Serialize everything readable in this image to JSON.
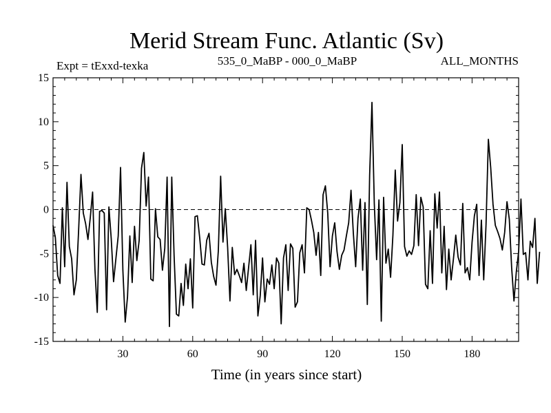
{
  "chart_data": {
    "type": "line",
    "title": "Merid Stream Func. Atlantic (Sv)",
    "subtitle_left": "Expt = tExxd-texka",
    "subtitle_center": "535_0_MaBP - 000_0_MaBP",
    "subtitle_right": "ALL_MONTHS",
    "xlabel": "Time (in years since start)",
    "ylabel": "",
    "xlim": [
      0,
      200
    ],
    "ylim": [
      -15,
      15
    ],
    "x_ticks": [
      30,
      60,
      90,
      120,
      150,
      180
    ],
    "y_ticks": [
      15,
      10,
      5,
      0,
      -5,
      -10,
      -15
    ],
    "reference_line": 0,
    "series": [
      {
        "name": "Merid Stream Func. Atlantic",
        "x_start": 0,
        "x_step": 1,
        "values": [
          -1.8,
          -3.2,
          -7.5,
          -8.4,
          0.2,
          -6.5,
          3.1,
          -4.2,
          -5.6,
          -9.7,
          -8.0,
          -2.3,
          4.0,
          -0.4,
          -1.6,
          -3.4,
          -0.9,
          2.0,
          -6.8,
          -11.7,
          -0.2,
          -0.1,
          -0.4,
          -11.4,
          0.3,
          -3.3,
          -8.2,
          -5.6,
          -3.0,
          4.8,
          -6.9,
          -12.8,
          -9.9,
          -3.0,
          -8.3,
          -1.9,
          -5.8,
          -3.5,
          4.7,
          6.5,
          0.4,
          3.7,
          -7.9,
          -8.1,
          0.1,
          -3.1,
          -3.4,
          -6.9,
          -4.4,
          3.7,
          -13.3,
          3.7,
          -5.2,
          -11.9,
          -12.1,
          -8.4,
          -10.9,
          -6.2,
          -9.0,
          -5.6,
          -11.2,
          -0.8,
          -0.7,
          -3.2,
          -6.2,
          -6.3,
          -3.5,
          -2.7,
          -6.0,
          -7.6,
          -8.6,
          -4.7,
          3.8,
          -3.7,
          0.1,
          -4.3,
          -10.4,
          -4.3,
          -7.4,
          -6.8,
          -7.5,
          -8.3,
          -6.1,
          -9.2,
          -6.6,
          -4.0,
          -9.7,
          -3.5,
          -12.1,
          -9.8,
          -5.5,
          -10.5,
          -7.9,
          -8.5,
          -6.3,
          -9.0,
          -5.5,
          -6.1,
          -13.0,
          -5.5,
          -4.0,
          -9.2,
          -3.9,
          -4.4,
          -11.1,
          -10.5,
          -4.9,
          -4.0,
          -7.2,
          0.2,
          0.0,
          -1.2,
          -2.6,
          -5.2,
          -2.6,
          -7.5,
          1.7,
          2.7,
          -0.4,
          -6.5,
          -3.0,
          -1.5,
          -4.8,
          -6.8,
          -5.2,
          -4.6,
          -3.0,
          -1.5,
          2.2,
          -2.7,
          -6.5,
          -1.0,
          1.2,
          -6.9,
          0.8,
          -10.8,
          3.9,
          12.2,
          0.7,
          -5.7,
          1.1,
          -12.7,
          1.4,
          -6.1,
          -4.5,
          -7.7,
          -2.9,
          4.5,
          -1.3,
          0.8,
          7.4,
          -4.2,
          -5.3,
          -4.7,
          -5.1,
          -4.1,
          1.7,
          -4.1,
          1.4,
          0.3,
          -8.5,
          -9.0,
          -2.4,
          -8.4,
          1.8,
          -2.1,
          2.0,
          -7.2,
          -1.9,
          -9.1,
          -4.5,
          -8.0,
          -5.6,
          -2.9,
          -5.4,
          -6.3,
          0.7,
          -7.2,
          -6.6,
          -8.0,
          -3.7,
          -0.7,
          0.6,
          -7.5,
          -1.2,
          -8.0,
          -1.7,
          8.0,
          4.8,
          0.6,
          -1.8,
          -2.5,
          -3.3,
          -4.6,
          -2.6,
          0.9,
          -1.1,
          -6.6,
          -10.4,
          -7.1,
          -4.8,
          1.2,
          -5.1,
          -4.9,
          -8.0,
          -3.6,
          -4.3,
          -1.0,
          -8.4,
          -4.8
        ]
      }
    ]
  }
}
